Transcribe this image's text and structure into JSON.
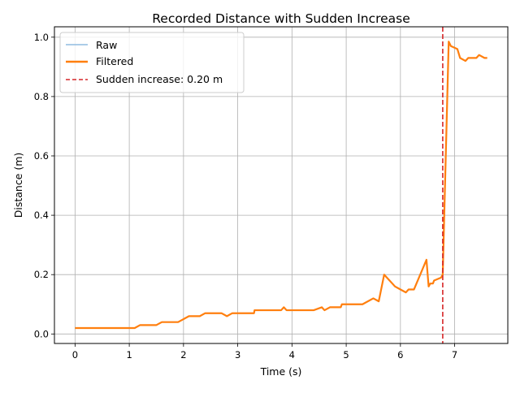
{
  "chart_data": {
    "type": "line",
    "title": "Recorded Distance with Sudden Increase",
    "xlabel": "Time (s)",
    "ylabel": "Distance (m)",
    "xlim": [
      -0.38,
      7.98
    ],
    "ylim": [
      -0.032,
      1.035
    ],
    "xticks": [
      0,
      1,
      2,
      3,
      4,
      5,
      6,
      7
    ],
    "yticks": [
      0.0,
      0.2,
      0.4,
      0.6,
      0.8,
      1.0
    ],
    "xtick_labels": [
      "0",
      "1",
      "2",
      "3",
      "4",
      "5",
      "6",
      "7"
    ],
    "ytick_labels": [
      "0.0",
      "0.2",
      "0.4",
      "0.6",
      "0.8",
      "1.0"
    ],
    "grid": true,
    "legend_position": "upper left",
    "series": [
      {
        "name": "Raw",
        "color": "#8fbbe0",
        "style": "thin-line",
        "x": [
          0,
          0.5,
          1.0,
          1.1,
          1.2,
          1.5,
          1.6,
          1.9,
          2.1,
          2.3,
          2.4,
          2.7,
          2.8,
          2.9,
          3.3,
          3.31,
          3.8,
          3.85,
          3.9,
          4.4,
          4.55,
          4.6,
          4.7,
          4.9,
          4.92,
          5.3,
          5.5,
          5.6,
          5.7,
          5.8,
          5.9,
          6.0,
          6.1,
          6.15,
          6.25,
          6.48,
          6.52,
          6.55,
          6.6,
          6.62,
          6.75,
          6.78,
          6.89,
          6.93,
          7.05,
          7.1,
          7.2,
          7.25,
          7.4,
          7.45,
          7.55,
          7.6
        ],
        "y": [
          0.02,
          0.02,
          0.02,
          0.02,
          0.03,
          0.03,
          0.04,
          0.04,
          0.06,
          0.06,
          0.07,
          0.07,
          0.06,
          0.07,
          0.07,
          0.08,
          0.08,
          0.09,
          0.08,
          0.08,
          0.09,
          0.08,
          0.09,
          0.09,
          0.1,
          0.1,
          0.12,
          0.11,
          0.2,
          0.18,
          0.16,
          0.15,
          0.14,
          0.15,
          0.15,
          0.25,
          0.16,
          0.17,
          0.17,
          0.18,
          0.19,
          0.2,
          0.985,
          0.97,
          0.96,
          0.93,
          0.92,
          0.93,
          0.93,
          0.94,
          0.93,
          0.93
        ]
      },
      {
        "name": "Filtered",
        "color": "#ff7f0e",
        "style": "thick-line",
        "x": [
          0,
          0.5,
          1.0,
          1.1,
          1.2,
          1.5,
          1.6,
          1.9,
          2.1,
          2.3,
          2.4,
          2.7,
          2.8,
          2.9,
          3.3,
          3.31,
          3.8,
          3.85,
          3.9,
          4.4,
          4.55,
          4.6,
          4.7,
          4.9,
          4.92,
          5.3,
          5.5,
          5.6,
          5.7,
          5.8,
          5.9,
          6.0,
          6.1,
          6.15,
          6.25,
          6.48,
          6.52,
          6.55,
          6.6,
          6.62,
          6.75,
          6.78,
          6.89,
          6.93,
          7.05,
          7.1,
          7.2,
          7.25,
          7.4,
          7.45,
          7.55,
          7.6
        ],
        "y": [
          0.02,
          0.02,
          0.02,
          0.02,
          0.03,
          0.03,
          0.04,
          0.04,
          0.06,
          0.06,
          0.07,
          0.07,
          0.06,
          0.07,
          0.07,
          0.08,
          0.08,
          0.09,
          0.08,
          0.08,
          0.09,
          0.08,
          0.09,
          0.09,
          0.1,
          0.1,
          0.12,
          0.11,
          0.2,
          0.18,
          0.16,
          0.15,
          0.14,
          0.15,
          0.15,
          0.25,
          0.16,
          0.17,
          0.17,
          0.18,
          0.19,
          0.2,
          0.985,
          0.97,
          0.96,
          0.93,
          0.92,
          0.93,
          0.93,
          0.94,
          0.93,
          0.93
        ]
      }
    ],
    "annotations": [
      {
        "type": "vertical-line",
        "name": "Sudden increase: 0.20 m",
        "x": 6.78,
        "color": "#d62728",
        "style": "dashed"
      }
    ]
  }
}
